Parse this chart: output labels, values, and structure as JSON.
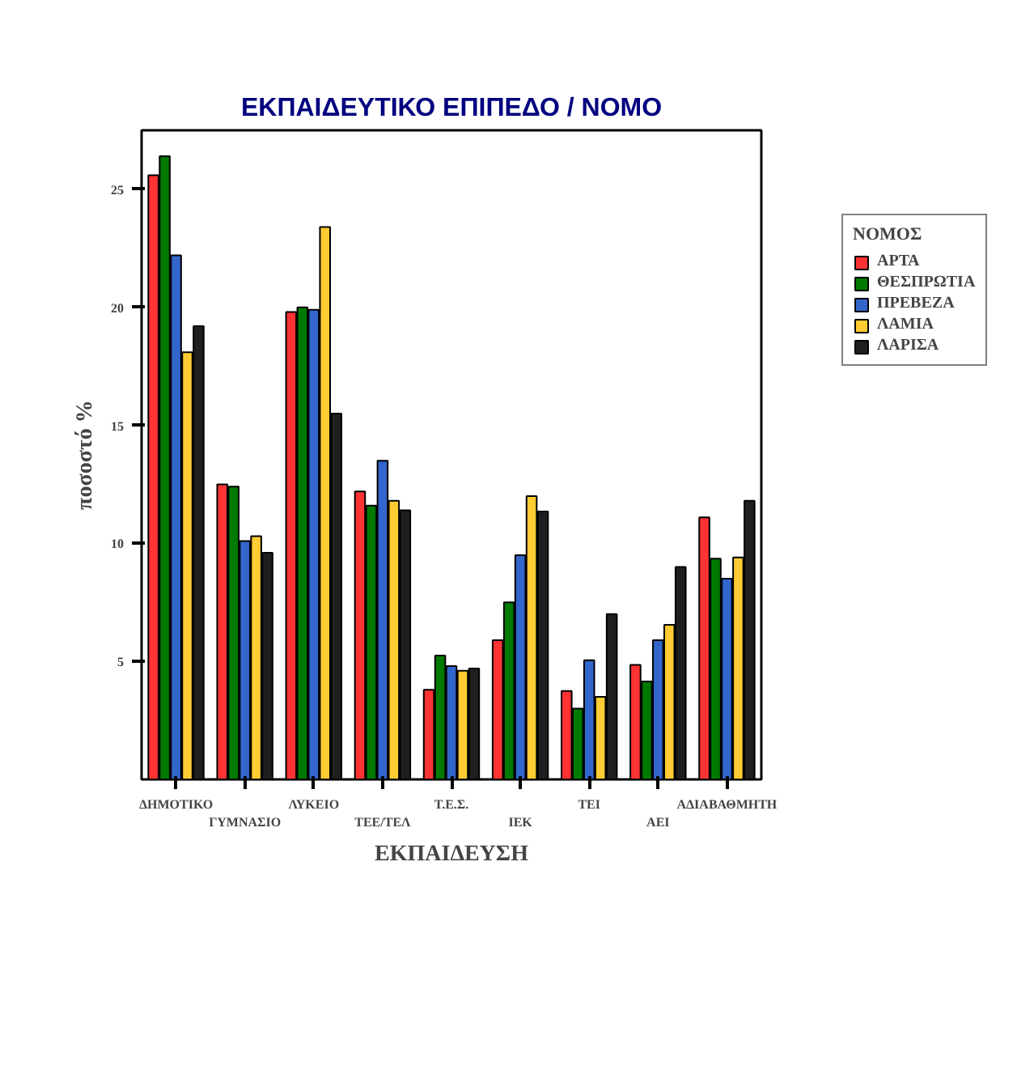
{
  "chart_data": {
    "type": "bar",
    "title": "ΕΚΠΑΙΔΕΥΤΙΚΟ ΕΠΙΠΕΔΟ / ΝΟΜΟ",
    "xlabel": "ΕΚΠΑΙΔΕΥΣΗ",
    "ylabel": "ποσοστό %",
    "legend_title": "ΝΟΜΟΣ",
    "categories": [
      "ΔΗΜΟΤΙΚΟ",
      "ΓΥΜΝΑΣΙΟ",
      "ΛΥΚΕΙΟ",
      "ΤΕΕ/ΤΕΛ",
      "Τ.Ε.Σ.",
      "ΙΕΚ",
      "ΤΕΙ",
      "ΑΕΙ",
      "ΑΔΙΑΒΑΘΜΗΤΗ"
    ],
    "series": [
      {
        "name": "ΑΡΤΑ",
        "color": "#ff3333",
        "values": [
          25.6,
          12.5,
          19.8,
          12.2,
          3.8,
          5.9,
          3.75,
          4.85,
          11.1
        ]
      },
      {
        "name": "ΘΕΣΠΡΩΤΙΑ",
        "color": "#007a00",
        "values": [
          26.4,
          12.4,
          20.0,
          11.6,
          5.25,
          7.5,
          3.0,
          4.15,
          9.35
        ]
      },
      {
        "name": "ΠΡΕΒΕΖΑ",
        "color": "#3366cc",
        "values": [
          22.2,
          10.1,
          19.9,
          13.5,
          4.8,
          9.5,
          5.05,
          5.9,
          8.5
        ]
      },
      {
        "name": "ΛΑΜΙΑ",
        "color": "#ffcc33",
        "values": [
          18.1,
          10.3,
          23.4,
          11.8,
          4.6,
          12.0,
          3.5,
          6.55,
          9.4
        ]
      },
      {
        "name": "ΛΑΡΙΣΑ",
        "color": "#1f1f1f",
        "values": [
          19.2,
          9.6,
          15.5,
          11.4,
          4.7,
          11.35,
          7.0,
          9.0,
          11.8
        ]
      }
    ],
    "ylim": [
      0,
      27.5
    ],
    "yticks": [
      5,
      10,
      15,
      20,
      25
    ],
    "legend": "right"
  }
}
